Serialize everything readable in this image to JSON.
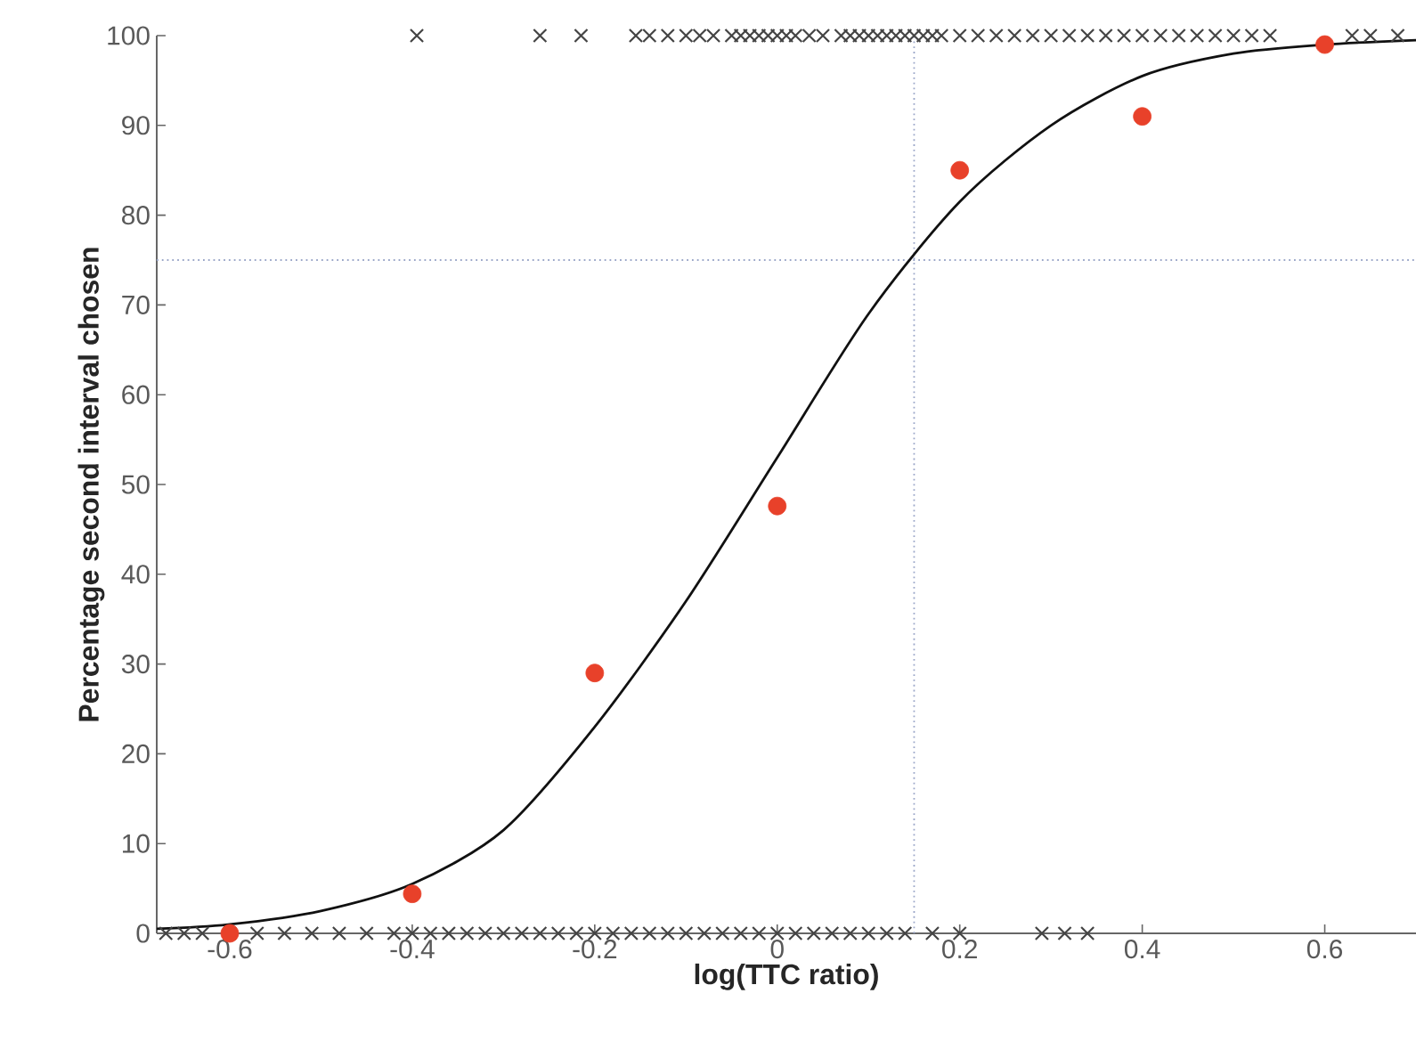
{
  "chart_data": {
    "type": "scatter",
    "xlabel": "log(TTC ratio)",
    "ylabel": "Percentage second  interval chosen",
    "xlim": [
      -0.68,
      0.7
    ],
    "ylim": [
      0,
      100
    ],
    "xticks": [
      -0.6,
      -0.4,
      -0.2,
      0,
      0.2,
      0.4,
      0.6
    ],
    "yticks": [
      0,
      10,
      20,
      30,
      40,
      50,
      60,
      70,
      80,
      90,
      100
    ],
    "series": [
      {
        "marker": "cross",
        "color": "#444444",
        "x": [
          -0.395,
          -0.26,
          -0.215,
          -0.155,
          -0.14,
          -0.12,
          -0.1,
          -0.085,
          -0.07,
          -0.05,
          -0.04,
          -0.03,
          -0.02,
          -0.01,
          0.0,
          0.01,
          0.02,
          0.035,
          0.05,
          0.07,
          0.08,
          0.09,
          0.1,
          0.11,
          0.12,
          0.13,
          0.14,
          0.15,
          0.16,
          0.17,
          0.18,
          0.2,
          0.22,
          0.24,
          0.26,
          0.28,
          0.3,
          0.32,
          0.34,
          0.36,
          0.38,
          0.4,
          0.42,
          0.44,
          0.46,
          0.48,
          0.5,
          0.52,
          0.54,
          0.63,
          0.65,
          0.68
        ],
        "values": [
          100,
          100,
          100,
          100,
          100,
          100,
          100,
          100,
          100,
          100,
          100,
          100,
          100,
          100,
          100,
          100,
          100,
          100,
          100,
          100,
          100,
          100,
          100,
          100,
          100,
          100,
          100,
          100,
          100,
          100,
          100,
          100,
          100,
          100,
          100,
          100,
          100,
          100,
          100,
          100,
          100,
          100,
          100,
          100,
          100,
          100,
          100,
          100,
          100,
          100,
          100,
          100
        ]
      },
      {
        "marker": "cross",
        "color": "#444444",
        "x": [
          -0.67,
          -0.65,
          -0.63,
          -0.6,
          -0.57,
          -0.54,
          -0.51,
          -0.48,
          -0.45,
          -0.42,
          -0.4,
          -0.38,
          -0.36,
          -0.34,
          -0.32,
          -0.3,
          -0.28,
          -0.26,
          -0.24,
          -0.22,
          -0.2,
          -0.18,
          -0.16,
          -0.14,
          -0.12,
          -0.1,
          -0.08,
          -0.06,
          -0.04,
          -0.02,
          0.0,
          0.02,
          0.04,
          0.06,
          0.08,
          0.1,
          0.12,
          0.14,
          0.17,
          0.2,
          0.29,
          0.315,
          0.34
        ],
        "values": [
          0,
          0,
          0,
          0,
          0,
          0,
          0,
          0,
          0,
          0,
          0,
          0,
          0,
          0,
          0,
          0,
          0,
          0,
          0,
          0,
          0,
          0,
          0,
          0,
          0,
          0,
          0,
          0,
          0,
          0,
          0,
          0,
          0,
          0,
          0,
          0,
          0,
          0,
          0,
          0,
          0,
          0,
          0
        ]
      },
      {
        "type": "line",
        "marker": "none",
        "color": "#111111",
        "x": [
          -0.68,
          -0.6,
          -0.5,
          -0.4,
          -0.3,
          -0.2,
          -0.1,
          0,
          0.1,
          0.2,
          0.3,
          0.4,
          0.5,
          0.6,
          0.7
        ],
        "values": [
          0.5,
          1,
          2.5,
          5.5,
          11.5,
          23,
          37,
          53,
          69,
          81.5,
          90,
          95.5,
          98,
          99,
          99.5
        ]
      },
      {
        "marker": "circle",
        "color": "#e8412a",
        "x": [
          -0.6,
          -0.4,
          -0.2,
          0,
          0.2,
          0.4,
          0.6
        ],
        "values": [
          0,
          4.4,
          29,
          47.6,
          85,
          91,
          99
        ]
      }
    ],
    "ref_lines": [
      {
        "axis": "x",
        "value": 0.15,
        "color": "#9aa6c8",
        "line_style": "dotted"
      },
      {
        "axis": "y",
        "value": 75,
        "color": "#9aa6c8",
        "line_style": "dotted"
      }
    ]
  }
}
